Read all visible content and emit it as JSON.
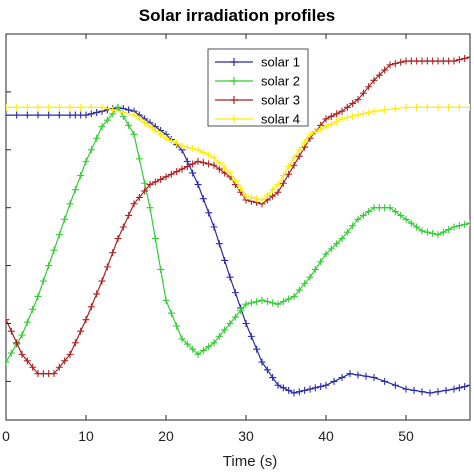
{
  "chart_data": {
    "type": "line",
    "title": "Solar irradiation profiles",
    "xlabel": "Time (s)",
    "ylabel": "",
    "xlim": [
      0,
      58
    ],
    "ylim": [
      0,
      1
    ],
    "xticks": [
      0,
      10,
      20,
      30,
      40,
      50
    ],
    "xtick_labels": [
      "0",
      "10",
      "20",
      "30",
      "40",
      "50"
    ],
    "grid": false,
    "legend_position": "top-right",
    "series": [
      {
        "name": "solar 1",
        "color": "#2b2ba8",
        "marker": "+",
        "x": [
          0,
          4,
          8,
          10,
          12,
          14,
          16,
          18,
          20,
          22,
          24,
          26,
          28,
          30,
          32,
          34,
          36,
          38,
          40,
          43,
          46,
          50,
          53,
          56,
          58
        ],
        "y": [
          0.79,
          0.79,
          0.79,
          0.79,
          0.8,
          0.81,
          0.8,
          0.77,
          0.74,
          0.7,
          0.61,
          0.5,
          0.37,
          0.25,
          0.15,
          0.09,
          0.07,
          0.08,
          0.09,
          0.12,
          0.11,
          0.08,
          0.07,
          0.08,
          0.09
        ]
      },
      {
        "name": "solar 2",
        "color": "#33cc33",
        "marker": "+",
        "x": [
          0,
          2,
          4,
          6,
          8,
          10,
          12,
          14,
          16,
          18,
          20,
          22,
          24,
          26,
          28,
          30,
          32,
          34,
          36,
          38,
          40,
          42,
          44,
          46,
          48,
          50,
          52,
          54,
          56,
          58
        ],
        "y": [
          0.15,
          0.22,
          0.32,
          0.44,
          0.56,
          0.67,
          0.76,
          0.81,
          0.74,
          0.55,
          0.31,
          0.21,
          0.17,
          0.2,
          0.25,
          0.3,
          0.31,
          0.3,
          0.32,
          0.37,
          0.43,
          0.47,
          0.52,
          0.55,
          0.55,
          0.52,
          0.49,
          0.48,
          0.5,
          0.51
        ]
      },
      {
        "name": "solar 3",
        "color": "#aa2222",
        "marker": "+",
        "x": [
          0,
          2,
          4,
          6,
          8,
          10,
          12,
          14,
          16,
          18,
          20,
          22,
          24,
          26,
          28,
          30,
          32,
          34,
          36,
          38,
          40,
          42,
          44,
          46,
          48,
          50,
          52,
          54,
          56,
          58
        ],
        "y": [
          0.26,
          0.17,
          0.12,
          0.12,
          0.17,
          0.26,
          0.36,
          0.47,
          0.56,
          0.61,
          0.63,
          0.65,
          0.67,
          0.66,
          0.63,
          0.57,
          0.56,
          0.59,
          0.66,
          0.73,
          0.78,
          0.8,
          0.83,
          0.88,
          0.92,
          0.93,
          0.93,
          0.93,
          0.93,
          0.94
        ]
      },
      {
        "name": "solar 4",
        "color": "#ffee00",
        "marker": "+",
        "x": [
          0,
          4,
          8,
          12,
          16,
          18,
          20,
          22,
          24,
          26,
          28,
          30,
          32,
          34,
          36,
          38,
          40,
          42,
          44,
          46,
          50,
          54,
          58
        ],
        "y": [
          0.81,
          0.81,
          0.81,
          0.81,
          0.79,
          0.76,
          0.73,
          0.71,
          0.7,
          0.68,
          0.64,
          0.58,
          0.57,
          0.61,
          0.68,
          0.74,
          0.76,
          0.78,
          0.79,
          0.8,
          0.81,
          0.81,
          0.81
        ]
      }
    ]
  }
}
